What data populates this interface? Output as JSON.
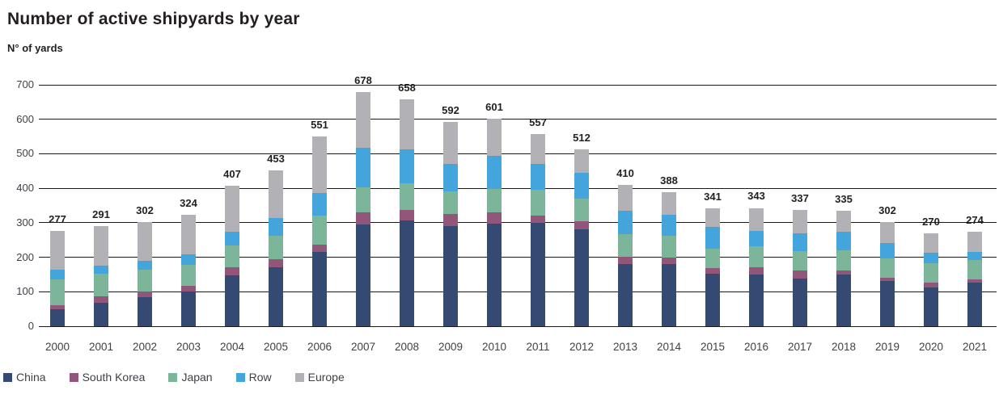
{
  "title": "Number of active shipyards by year",
  "y_axis_title": "N° of yards",
  "colors": {
    "text": "#231f20",
    "axis_text": "#3d4248",
    "grid": "#1a1a1a"
  },
  "chart_data": {
    "type": "bar",
    "stacked": true,
    "title": "Number of active shipyards by year",
    "xlabel": "",
    "ylabel": "N° of yards",
    "ylim": [
      0,
      700
    ],
    "yticks": [
      0,
      100,
      200,
      300,
      400,
      500,
      600,
      700
    ],
    "grid": true,
    "legend_position": "bottom",
    "categories": [
      "2000",
      "2001",
      "2002",
      "2003",
      "2004",
      "2005",
      "2006",
      "2007",
      "2008",
      "2009",
      "2010",
      "2011",
      "2012",
      "2013",
      "2014",
      "2015",
      "2016",
      "2017",
      "2018",
      "2019",
      "2020",
      "2021"
    ],
    "totals": [
      277,
      291,
      302,
      324,
      407,
      453,
      551,
      678,
      658,
      592,
      601,
      557,
      512,
      410,
      388,
      341,
      343,
      337,
      335,
      302,
      270,
      274
    ],
    "series": [
      {
        "name": "China",
        "color": "#344a72",
        "values": [
          50,
          69,
          84,
          100,
          147,
          172,
          216,
          295,
          307,
          291,
          298,
          299,
          281,
          180,
          181,
          152,
          151,
          138,
          149,
          131,
          113,
          127
        ]
      },
      {
        "name": "South Korea",
        "color": "#93567b",
        "values": [
          12,
          18,
          16,
          17,
          24,
          22,
          21,
          36,
          31,
          34,
          32,
          21,
          23,
          22,
          18,
          16,
          19,
          23,
          12,
          10,
          13,
          8
        ]
      },
      {
        "name": "Japan",
        "color": "#7db59a",
        "values": [
          73,
          65,
          65,
          60,
          63,
          68,
          83,
          71,
          77,
          65,
          69,
          76,
          66,
          64,
          63,
          56,
          61,
          56,
          59,
          56,
          56,
          56
        ]
      },
      {
        "name": "Row",
        "color": "#44a4dc",
        "values": [
          28,
          24,
          25,
          32,
          40,
          51,
          66,
          116,
          98,
          80,
          96,
          75,
          74,
          68,
          60,
          63,
          46,
          53,
          54,
          44,
          31,
          25
        ]
      },
      {
        "name": "Europe",
        "color": "#b2b1b6",
        "values": [
          114,
          115,
          112,
          115,
          133,
          140,
          165,
          160,
          145,
          122,
          106,
          86,
          68,
          76,
          66,
          54,
          66,
          67,
          61,
          61,
          57,
          58
        ]
      }
    ]
  }
}
